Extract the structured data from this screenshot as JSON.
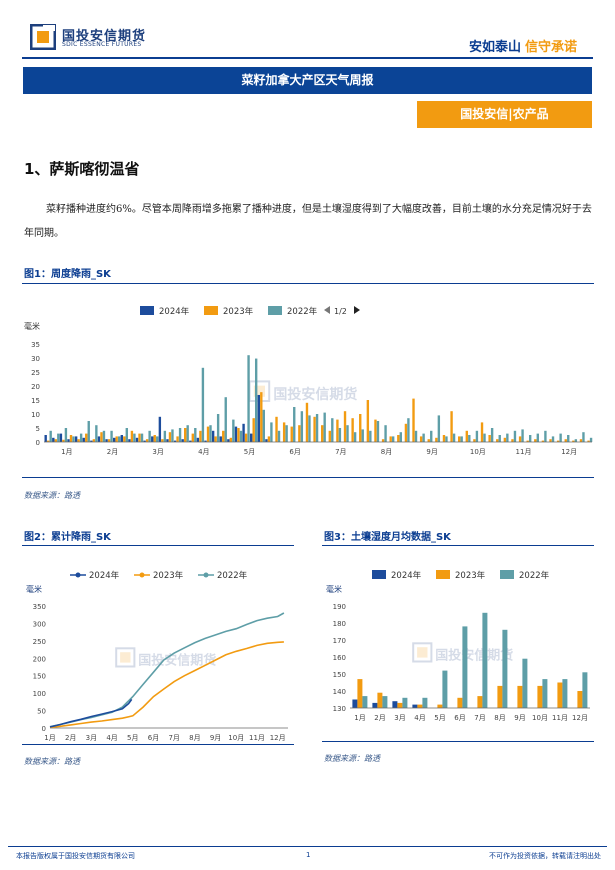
{
  "header": {
    "logo_cn": "国投安信期货",
    "logo_en": "SDIC ESSENCE FUTURES",
    "slogan_part1": "安如泰山",
    "slogan_part2": "信守承诺"
  },
  "report_title": "菜籽加拿大产区天气周报",
  "tag": "国投安信|农产品",
  "section": {
    "title": "1、萨斯喀彻温省",
    "paragraph": "菜籽播种进度约6%。尽管本周降雨增多拖累了播种进度，但是土壤湿度得到了大幅度改善，目前土壤的水分充足情况好于去年同期。"
  },
  "watermark_text": "国投安信期货",
  "fig1": {
    "title": "图1：周度降雨_SK",
    "source": "数据来源：路透",
    "legend_pager": "1/2"
  },
  "fig2": {
    "title": "图2：累计降雨_SK",
    "source": "数据来源：路透"
  },
  "fig3": {
    "title": "图3：土壤湿度月均数据_SK"
  },
  "footer": {
    "left": "本报告版权属于国投安信期货有限公司",
    "page": "1",
    "right": "不可作为投资依据，转载请注明出处"
  },
  "colors": {
    "c2024": "#1d4c9c",
    "c2023": "#f29b11",
    "c2022": "#5e9ea7",
    "brand_blue": "#0b4496",
    "brand_orange": "#f29b11"
  },
  "chart_data": [
    {
      "id": "fig1",
      "type": "bar",
      "ylabel": "毫米",
      "ylim": [
        0,
        35
      ],
      "yticks": [
        0,
        5,
        10,
        15,
        20,
        25,
        30,
        35
      ],
      "month_labels": [
        "1月",
        "2月",
        "3月",
        "4月",
        "5月",
        "6月",
        "7月",
        "8月",
        "9月",
        "10月",
        "11月",
        "12月"
      ],
      "legend_position": "top-center",
      "series": [
        {
          "name": "2024年",
          "color": "#1d4c9c",
          "values": [
            2.5,
            1.5,
            3.0,
            1.0,
            2.0,
            1.5,
            0.5,
            2.0,
            1.0,
            1.5,
            2.5,
            1.0,
            1.5,
            0.5,
            2.0,
            9.0,
            1.0,
            0.5,
            1.0,
            0.5,
            1.5,
            0.5,
            4.0,
            2.0,
            1.0,
            5.5,
            6.5,
            3.0,
            16.8,
            1.0
          ]
        },
        {
          "name": "2023年",
          "color": "#f29b11",
          "values": [
            0.5,
            1.0,
            0.8,
            2.5,
            1.0,
            3.0,
            1.0,
            3.5,
            1.0,
            2.0,
            2.0,
            4.0,
            3.0,
            1.0,
            2.5,
            1.0,
            3.5,
            2.0,
            5.0,
            3.0,
            4.0,
            5.5,
            2.0,
            4.0,
            1.5,
            5.0,
            3.0,
            8.5,
            17.8,
            2.0,
            9.0,
            7.0,
            5.5,
            6.0,
            14.0,
            9.0,
            6.0,
            4.0,
            8.0,
            11.0,
            8.5,
            10.0,
            15.0,
            8.0,
            1.0,
            2.0,
            2.5,
            6.5,
            15.5,
            2.0,
            1.0,
            1.5,
            2.5,
            11.0,
            2.0,
            4.0,
            1.0,
            7.0,
            2.5,
            1.0,
            1.5,
            1.0,
            2.0,
            0.5,
            1.0,
            0.5,
            1.0,
            0.5,
            1.0,
            0.5,
            1.0,
            0.5
          ]
        },
        {
          "name": "2022年",
          "color": "#5e9ea7",
          "values": [
            4.0,
            3.0,
            5.0,
            2.0,
            3.0,
            7.5,
            6.0,
            4.0,
            4.0,
            2.0,
            5.0,
            3.0,
            3.0,
            4.0,
            2.0,
            4.0,
            4.5,
            5.0,
            6.0,
            5.0,
            26.5,
            6.0,
            10.0,
            16.0,
            8.0,
            4.0,
            31.0,
            29.8,
            11.5,
            7.0,
            4.0,
            6.0,
            12.5,
            11.0,
            9.5,
            10.0,
            10.5,
            8.5,
            5.0,
            6.0,
            3.5,
            4.5,
            4.0,
            7.5,
            6.0,
            2.0,
            3.5,
            8.5,
            4.0,
            3.0,
            4.0,
            9.5,
            2.0,
            3.0,
            2.0,
            2.5,
            4.0,
            3.0,
            5.0,
            2.5,
            3.0,
            4.0,
            4.5,
            2.5,
            3.0,
            4.0,
            2.0,
            3.0,
            2.5,
            1.0,
            3.5,
            1.5
          ]
        }
      ]
    },
    {
      "id": "fig2",
      "type": "line",
      "ylabel": "毫米",
      "ylim": [
        0,
        350
      ],
      "yticks": [
        0,
        50,
        100,
        150,
        200,
        250,
        300,
        350
      ],
      "month_labels": [
        "1月",
        "2月",
        "3月",
        "4月",
        "5月",
        "6月",
        "7月",
        "8月",
        "9月",
        "10月",
        "11月",
        "12月"
      ],
      "legend_position": "top-center",
      "series": [
        {
          "name": "2024年",
          "color": "#1d4c9c",
          "points": [
            [
              1,
              3
            ],
            [
              1.5,
              10
            ],
            [
              2,
              18
            ],
            [
              2.5,
              25
            ],
            [
              3,
              33
            ],
            [
              3.5,
              40
            ],
            [
              4,
              47
            ],
            [
              4.5,
              55
            ],
            [
              4.8,
              70
            ],
            [
              4.95,
              82
            ]
          ]
        },
        {
          "name": "2023年",
          "color": "#f29b11",
          "points": [
            [
              1,
              2
            ],
            [
              1.5,
              5
            ],
            [
              2,
              9
            ],
            [
              2.5,
              13
            ],
            [
              3,
              17
            ],
            [
              3.5,
              20
            ],
            [
              4,
              24
            ],
            [
              4.5,
              28
            ],
            [
              5,
              35
            ],
            [
              5.5,
              60
            ],
            [
              6,
              90
            ],
            [
              6.5,
              112
            ],
            [
              7,
              133
            ],
            [
              7.5,
              150
            ],
            [
              8,
              165
            ],
            [
              8.5,
              180
            ],
            [
              9,
              195
            ],
            [
              9.5,
              210
            ],
            [
              10,
              220
            ],
            [
              10.5,
              228
            ],
            [
              11,
              237
            ],
            [
              11.5,
              243
            ],
            [
              12,
              246
            ],
            [
              12.3,
              247
            ]
          ]
        },
        {
          "name": "2022年",
          "color": "#5e9ea7",
          "points": [
            [
              1,
              4
            ],
            [
              1.5,
              10
            ],
            [
              2,
              17
            ],
            [
              2.5,
              24
            ],
            [
              3,
              30
            ],
            [
              3.5,
              38
            ],
            [
              4,
              45
            ],
            [
              4.5,
              60
            ],
            [
              5,
              90
            ],
            [
              5.5,
              125
            ],
            [
              6,
              160
            ],
            [
              6.5,
              195
            ],
            [
              7,
              215
            ],
            [
              7.5,
              230
            ],
            [
              8,
              245
            ],
            [
              8.5,
              257
            ],
            [
              9,
              267
            ],
            [
              9.5,
              277
            ],
            [
              10,
              285
            ],
            [
              10.5,
              297
            ],
            [
              11,
              308
            ],
            [
              11.5,
              315
            ],
            [
              12,
              320
            ],
            [
              12.3,
              330
            ]
          ]
        }
      ]
    },
    {
      "id": "fig3",
      "type": "bar",
      "ylabel": "毫米",
      "ylim": [
        130,
        190
      ],
      "yticks": [
        130,
        140,
        150,
        160,
        170,
        180,
        190
      ],
      "categories": [
        "1月",
        "2月",
        "3月",
        "4月",
        "5月",
        "6月",
        "7月",
        "8月",
        "9月",
        "10月",
        "11月",
        "12月"
      ],
      "legend_position": "top-center",
      "series": [
        {
          "name": "2024年",
          "color": "#1d4c9c",
          "values": [
            135,
            133,
            134,
            132,
            null,
            null,
            null,
            null,
            null,
            null,
            null,
            null
          ]
        },
        {
          "name": "2023年",
          "color": "#f29b11",
          "values": [
            147,
            139,
            133,
            132,
            132,
            136,
            137,
            143,
            143,
            143,
            145,
            140
          ]
        },
        {
          "name": "2022年",
          "color": "#5e9ea7",
          "values": [
            137,
            137,
            136,
            136,
            152,
            178,
            186,
            176,
            159,
            147,
            147,
            151
          ]
        }
      ]
    }
  ]
}
